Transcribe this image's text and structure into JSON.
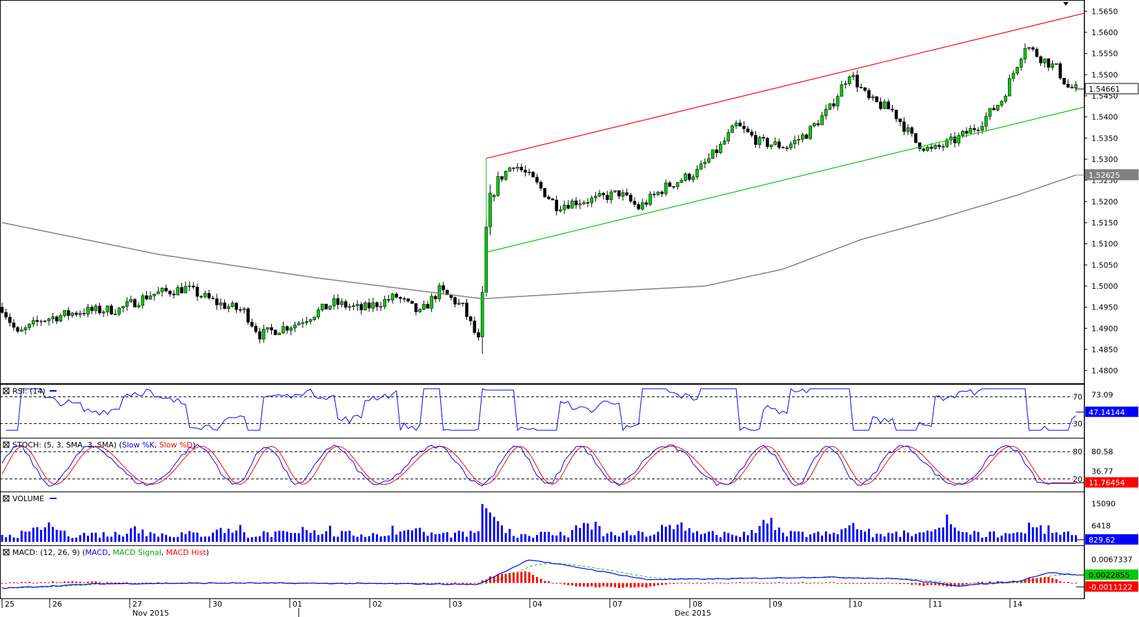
{
  "chart_data": {
    "type": "candlestick",
    "instrument_timeframe": "hourly",
    "main": {
      "y_axis_ticks": [
        "1.5650",
        "1.5600",
        "1.5550",
        "1.5500",
        "1.5450",
        "1.5400",
        "1.5350",
        "1.5300",
        "1.5250",
        "1.5200",
        "1.5150",
        "1.5100",
        "1.5050",
        "1.5000",
        "1.4950",
        "1.4900",
        "1.4850",
        "1.4800"
      ],
      "ylim": [
        1.477,
        1.567
      ],
      "price_tag": "1.54661",
      "ma_tag": "1.52625",
      "candles_note": "approx. hourly OHLC, 23 Nov - 14 Dec 2015",
      "ma_series_name": "",
      "channel": {
        "upper": {
          "color": "#ff0000",
          "points": [
            [
              0.0,
              1.5302
            ],
            [
              1.0,
              1.5645
            ]
          ]
        },
        "lower": {
          "color": "#00cc00",
          "points": [
            [
              0.0,
              1.508
            ],
            [
              1.0,
              1.5423
            ]
          ]
        }
      }
    },
    "rsi": {
      "title": "RSI: (14)",
      "levels": [
        "70",
        "30"
      ],
      "ticks": [
        "73.09"
      ],
      "value_tag": "47.14144",
      "color": "#0000ff"
    },
    "stoch": {
      "title_prefix": "STOCH: (5, 3, SMA, 3, SMA) (",
      "k_label": "Slow %K",
      "d_label": "Slow %D",
      "title_suffix": ")",
      "levels": [
        "80",
        "20"
      ],
      "ticks": [
        "80.58",
        "36.77"
      ],
      "value_tag": "11.76454",
      "k_color": "#0000ff",
      "d_color": "#ff0000"
    },
    "volume": {
      "title": "VOLUME",
      "ticks": [
        "15090",
        "6418"
      ],
      "value_tag": "829.62",
      "color": "#0000ff"
    },
    "macd": {
      "title_prefix": "MACD: (12, 26, 9) (",
      "macd_label": "MACD",
      "signal_label": "MACD Signal",
      "hist_label": "MACD Hist",
      "title_suffix": ")",
      "ticks": [
        "0.0067337"
      ],
      "value_tags": [
        "0.0022855",
        "-0.0011122"
      ],
      "macd_color": "#0000ff",
      "signal_color": "#00cc00",
      "hist_color": "#ff0000"
    },
    "x_axis": {
      "day_labels": [
        "25",
        "26",
        "27",
        "30",
        "01",
        "02",
        "03",
        "04",
        "07",
        "08",
        "09",
        "10",
        "11",
        "14"
      ],
      "month_labels": [
        "Nov 2015",
        "Dec 2015"
      ]
    }
  }
}
